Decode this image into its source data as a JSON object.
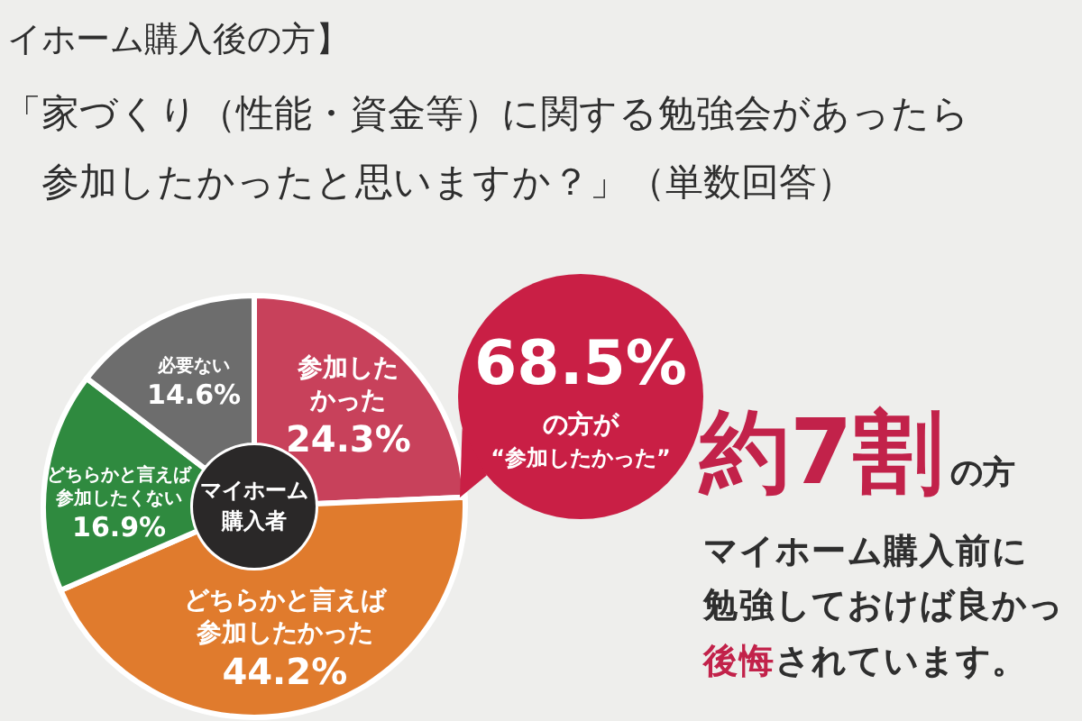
{
  "chart_data": {
    "type": "donut",
    "title": "イホーム購入後の方】",
    "subtitle": "「家づくり（性能・資金等）に関する勉強会があったら参加したかったと思いますか？」（単数回答）",
    "categories": [
      "参加したかった",
      "どちらかと言えば参加したかった",
      "どちらかと言えば参加したくない",
      "必要ない"
    ],
    "values": [
      24.3,
      44.2,
      16.9,
      14.6
    ],
    "colors": [
      "#c8415b",
      "#e07b2d",
      "#2f8a3f",
      "#6d6d6d"
    ],
    "value_labels": [
      "24.3%",
      "44.2%",
      "16.9%",
      "14.6%"
    ],
    "annotations": [
      "マイホーム購入者",
      "68.5%",
      "の方が",
      "“参加したかった”",
      "約7割",
      "の方",
      "マイホーム購入前に",
      "勉強しておけば良かっ",
      "後悔",
      "されています。"
    ]
  }
}
